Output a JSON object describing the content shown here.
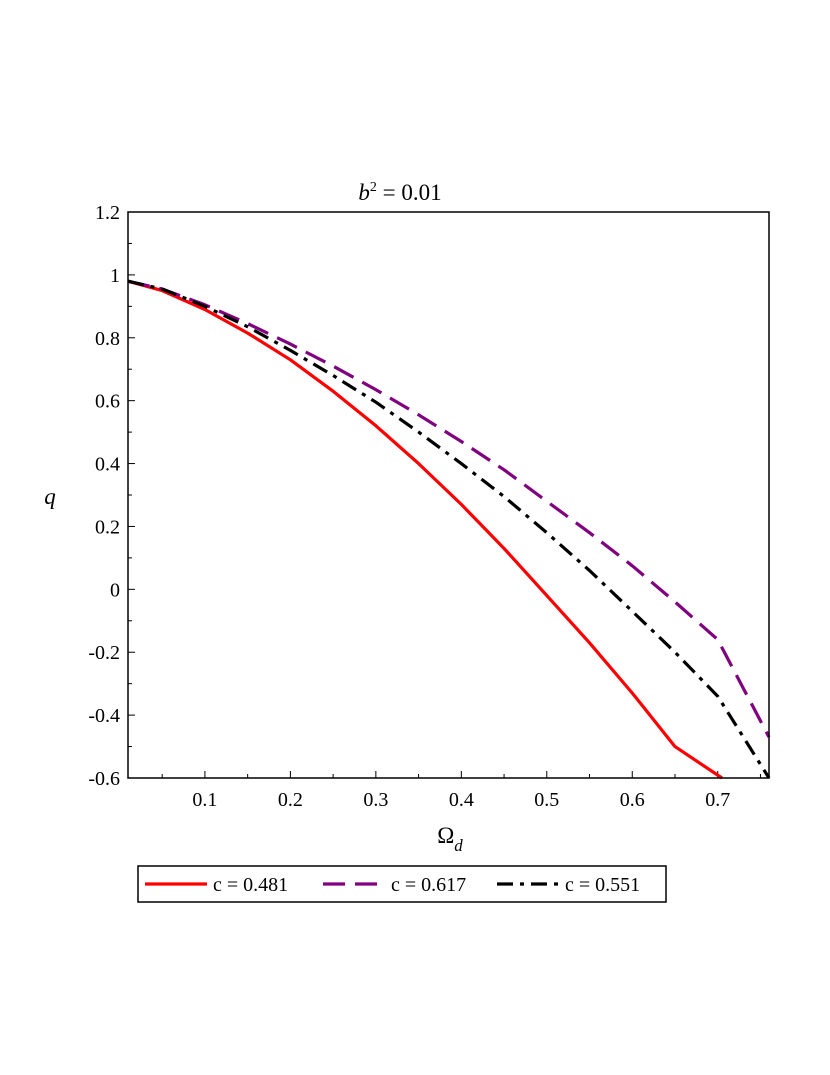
{
  "chart_data": {
    "type": "line",
    "title": {
      "main": "b",
      "sup": "2",
      "rest": " = 0.01"
    },
    "xlabel": {
      "main": "Ω",
      "sub": "d"
    },
    "ylabel": "q",
    "xlim": [
      0.01,
      0.76
    ],
    "ylim": [
      -0.6,
      1.2
    ],
    "xticks": [
      0.1,
      0.2,
      0.3,
      0.4,
      0.5,
      0.6,
      0.7
    ],
    "xtick_labels": [
      "0.1",
      "0.2",
      "0.3",
      "0.4",
      "0.5",
      "0.6",
      "0.7"
    ],
    "yticks": [
      1.2,
      1,
      0.8,
      0.6,
      0.4,
      0.2,
      0,
      -0.2,
      -0.4,
      -0.6
    ],
    "ytick_labels": [
      "1.2",
      "1",
      "0.8",
      "0.6",
      "0.4",
      "0.2",
      "0",
      "-0.2",
      "-0.4",
      "-0.6"
    ],
    "legend_position": "bottom",
    "series": [
      {
        "name": "c = 0.481",
        "color": "#ff0000",
        "style": "solid",
        "x": [
          0.01,
          0.05,
          0.1,
          0.15,
          0.2,
          0.25,
          0.3,
          0.35,
          0.4,
          0.45,
          0.5,
          0.55,
          0.6,
          0.65,
          0.705
        ],
        "y": [
          0.98,
          0.95,
          0.89,
          0.815,
          0.73,
          0.63,
          0.52,
          0.4,
          0.27,
          0.13,
          -0.02,
          -0.17,
          -0.33,
          -0.5,
          -0.6
        ]
      },
      {
        "name": "c = 0.617",
        "color": "#800080",
        "style": "dashed",
        "x": [
          0.01,
          0.05,
          0.1,
          0.15,
          0.2,
          0.25,
          0.3,
          0.35,
          0.4,
          0.45,
          0.5,
          0.55,
          0.6,
          0.65,
          0.7,
          0.76
        ],
        "y": [
          0.98,
          0.955,
          0.905,
          0.845,
          0.78,
          0.71,
          0.635,
          0.555,
          0.47,
          0.38,
          0.28,
          0.18,
          0.075,
          -0.04,
          -0.16,
          -0.47
        ]
      },
      {
        "name": "c = 0.551",
        "color": "#000000",
        "style": "dashdot",
        "x": [
          0.01,
          0.05,
          0.1,
          0.15,
          0.2,
          0.25,
          0.3,
          0.35,
          0.4,
          0.45,
          0.5,
          0.55,
          0.6,
          0.65,
          0.7,
          0.76
        ],
        "y": [
          0.98,
          0.955,
          0.9,
          0.835,
          0.76,
          0.68,
          0.595,
          0.5,
          0.4,
          0.295,
          0.18,
          0.06,
          -0.07,
          -0.2,
          -0.34,
          -0.6
        ]
      }
    ]
  }
}
